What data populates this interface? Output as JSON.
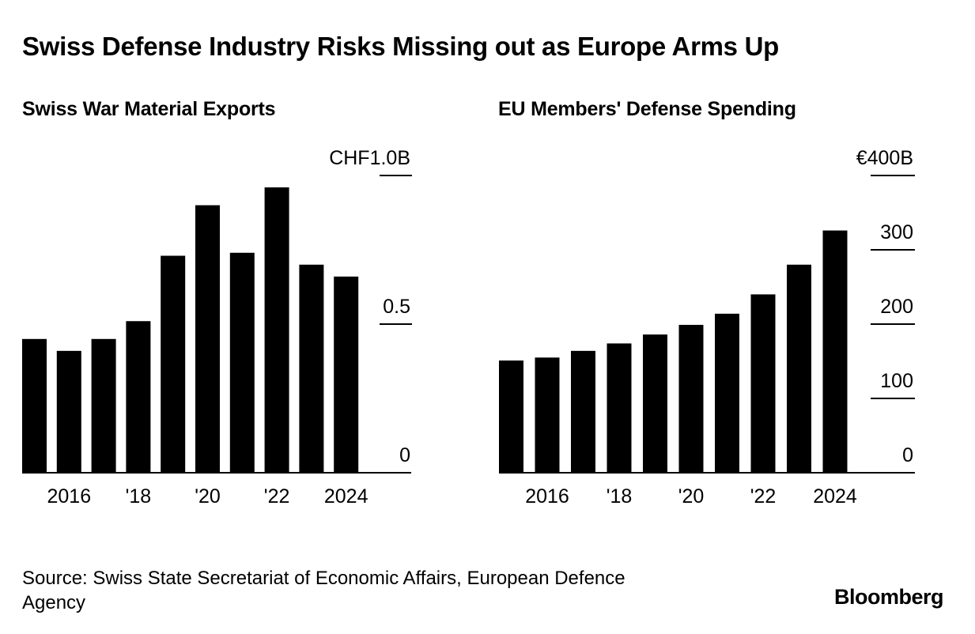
{
  "title": "Swiss Defense Industry Risks Missing out as Europe Arms Up",
  "source": "Source: Swiss State Secretariat of Economic Affairs, European Defence Agency",
  "logo": "Bloomberg",
  "chart_data": [
    {
      "type": "bar",
      "title": "Swiss War Material Exports",
      "x": [
        2015,
        2016,
        2017,
        2018,
        2019,
        2020,
        2021,
        2022,
        2023,
        2024
      ],
      "values": [
        0.45,
        0.41,
        0.45,
        0.51,
        0.73,
        0.9,
        0.74,
        0.96,
        0.7,
        0.66
      ],
      "ylim": [
        0,
        1.0
      ],
      "yticks": [
        0,
        0.5,
        1.0
      ],
      "ytick_labels": [
        "0",
        "0.5",
        "CHF1.0B"
      ],
      "xtick_values": [
        2016,
        2018,
        2020,
        2022,
        2024
      ],
      "xtick_labels": [
        "2016",
        "'18",
        "'20",
        "'22",
        "2024"
      ],
      "grid": false,
      "color": "#000000"
    },
    {
      "type": "bar",
      "title": "EU Members' Defense Spending",
      "x": [
        2015,
        2016,
        2017,
        2018,
        2019,
        2020,
        2021,
        2022,
        2023,
        2024
      ],
      "values": [
        151,
        155,
        164,
        174,
        186,
        199,
        214,
        240,
        280,
        326
      ],
      "ylim": [
        0,
        400
      ],
      "yticks": [
        0,
        100,
        200,
        300,
        400
      ],
      "ytick_labels": [
        "0",
        "100",
        "200",
        "300",
        "€400B"
      ],
      "xtick_values": [
        2016,
        2018,
        2020,
        2022,
        2024
      ],
      "xtick_labels": [
        "2016",
        "'18",
        "'20",
        "'22",
        "2024"
      ],
      "grid": false,
      "color": "#000000"
    }
  ]
}
